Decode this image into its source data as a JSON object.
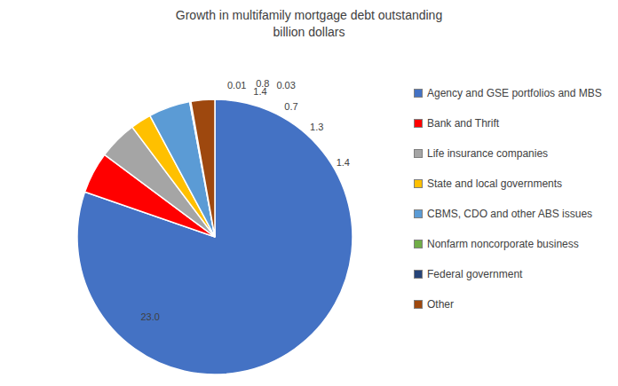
{
  "chart_data": {
    "type": "pie",
    "title": "Growth in multifamily mortgage debt outstanding",
    "subtitle": "billion dollars",
    "categories": [
      "Agency and GSE portfolios and MBS",
      "Bank and Thrift",
      "Life insurance companies",
      "State and local governments",
      "CBMS, CDO and other ABS issues",
      "Nonfarm noncorporate business",
      "Federal government",
      "Other"
    ],
    "values": [
      23.0,
      1.4,
      1.3,
      0.7,
      1.4,
      0.03,
      0.01,
      0.8
    ],
    "value_labels": [
      "23.0",
      "1.4",
      "1.3",
      "0.7",
      "1.4",
      "0.03",
      "0.01",
      "0.8"
    ],
    "colors": [
      "#4472C4",
      "#FF0000",
      "#A5A5A5",
      "#FFC000",
      "#5B9BD5",
      "#70AD47",
      "#264478",
      "#9E480E"
    ],
    "data_labels": true,
    "legend": "right"
  }
}
